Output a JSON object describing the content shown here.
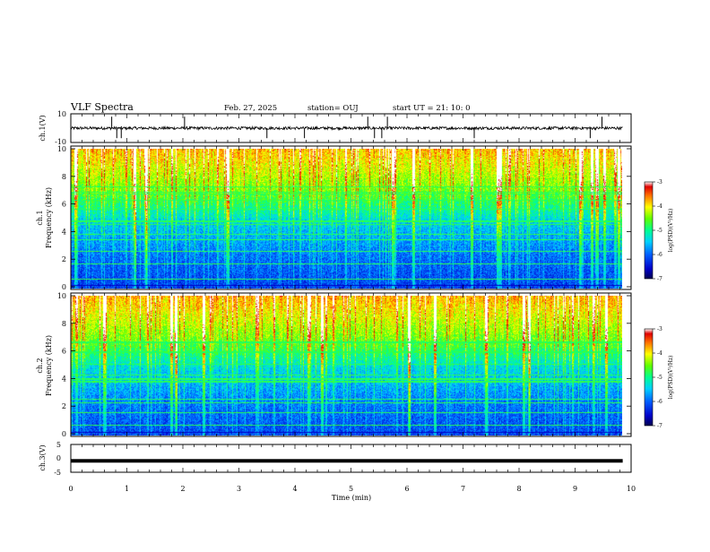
{
  "header": {
    "title": "VLF Spectra",
    "date": "Feb. 27, 2025",
    "station": "station= OUJ",
    "start": "start  UT  =   21: 10: 0"
  },
  "chart_data": [
    {
      "type": "line",
      "title": "",
      "ylabel": "ch.1(V)",
      "xlim": [
        0,
        10
      ],
      "ylim": [
        -10,
        10
      ],
      "yticks": [
        "10",
        "-10"
      ],
      "baseline": 0,
      "noise_band": [
        -1,
        1
      ],
      "spikes_x": [
        0.73,
        0.82,
        0.9,
        2.03,
        3.5,
        4.17,
        5.3,
        5.42,
        5.55,
        5.65,
        7.2,
        9.27,
        9.48
      ]
    },
    {
      "type": "heatmap",
      "title": "",
      "ylabel_1": "ch.1",
      "ylabel_2": "Frequency  (kHz)",
      "xlim": [
        0,
        9.85
      ],
      "ylim": [
        0,
        10
      ],
      "yticks": [
        "0",
        "2",
        "4",
        "6",
        "8",
        "10"
      ],
      "colorbar": {
        "min": -7,
        "max": -3,
        "ticks": [
          "-3",
          "-4",
          "-5",
          "-6",
          "-7"
        ],
        "label": "log(PSD)(V²/Hz)"
      }
    },
    {
      "type": "heatmap",
      "title": "",
      "ylabel_1": "ch.2",
      "ylabel_2": "Frequency  (kHz)",
      "xlim": [
        0,
        9.85
      ],
      "ylim": [
        0,
        10
      ],
      "yticks": [
        "0",
        "2",
        "4",
        "6",
        "8",
        "10"
      ],
      "colorbar": {
        "min": -7,
        "max": -3,
        "ticks": [
          "-3",
          "-4",
          "-5",
          "-6",
          "-7"
        ],
        "label": "log(PSD)(V²/Hz)"
      }
    },
    {
      "type": "line",
      "title": "",
      "ylabel": "ch.3(V)",
      "xlim": [
        0,
        10
      ],
      "ylim": [
        -5,
        5
      ],
      "yticks": [
        "5",
        "0",
        "-5"
      ],
      "constant_value": -0.9,
      "xlabel": "Time  (min)",
      "xticks": [
        "0",
        "1",
        "2",
        "3",
        "4",
        "5",
        "6",
        "7",
        "8",
        "9",
        "10"
      ]
    }
  ],
  "colors": {
    "frame": "#000000",
    "background": "#ffffff"
  }
}
